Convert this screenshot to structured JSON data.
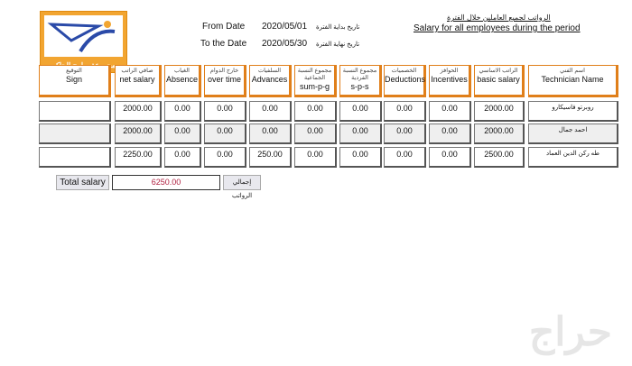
{
  "logo": {
    "text": "مجموعة برامج الحاكم",
    "brand_color": "#f2a531"
  },
  "header": {
    "from_label": "From Date",
    "from_value": "2020/05/01",
    "from_label_ar": "تاريخ بداية الفترة",
    "to_label": "To the Date",
    "to_value": "2020/05/30",
    "to_label_ar": "تاريخ نهاية الفترة",
    "title_ar": "الرواتب لجميع العاملين خلال الفترة",
    "title": "Salary for all employees during the period"
  },
  "columns": [
    {
      "ar": "التوقيع",
      "en": "Sign"
    },
    {
      "ar": "صافي الراتب",
      "en": "net salary"
    },
    {
      "ar": "الغياب",
      "en": "Absence"
    },
    {
      "ar": "خارج الدوام",
      "en": "over time"
    },
    {
      "ar": "السلفيات",
      "en": "Advances"
    },
    {
      "ar": "مجموع النسبة الجماعية",
      "en": "sum-p-g"
    },
    {
      "ar": "مجموع النسبة الفردية",
      "en": "s-p-s"
    },
    {
      "ar": "الخصميات",
      "en": "Deductions"
    },
    {
      "ar": "الحوافز",
      "en": "Incentives"
    },
    {
      "ar": "الراتب الاساسي",
      "en": "basic salary"
    },
    {
      "ar": "اسم الفني",
      "en": "Technician Name"
    }
  ],
  "rows": [
    [
      "",
      "2000.00",
      "0.00",
      "0.00",
      "0.00",
      "0.00",
      "0.00",
      "0.00",
      "0.00",
      "2000.00",
      "روبرتو فاسيكارو"
    ],
    [
      "",
      "2000.00",
      "0.00",
      "0.00",
      "0.00",
      "0.00",
      "0.00",
      "0.00",
      "0.00",
      "2000.00",
      "احمد جمال"
    ],
    [
      "",
      "2250.00",
      "0.00",
      "0.00",
      "250.00",
      "0.00",
      "0.00",
      "0.00",
      "0.00",
      "2500.00",
      "طه ركن الدين العماد"
    ]
  ],
  "total": {
    "label": "Total salary",
    "value": "6250.00",
    "button_ar": "إجمالي الرواتب",
    "value_color": "#b02040"
  },
  "watermark": "حراج"
}
